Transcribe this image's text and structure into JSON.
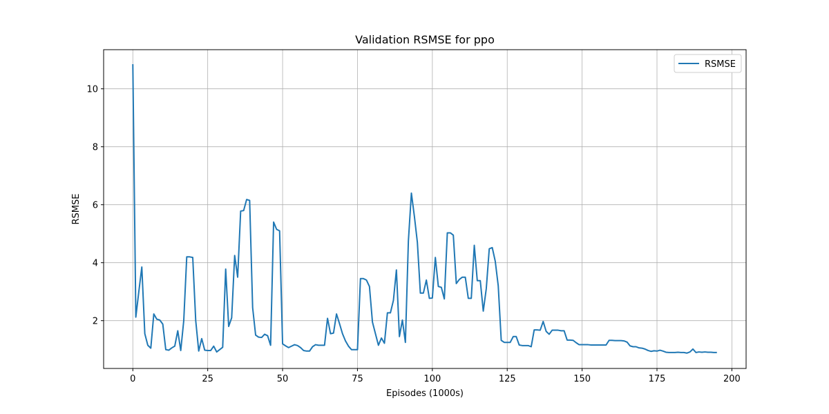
{
  "chart_data": {
    "type": "line",
    "title": "Validation RSMSE for ppo",
    "xlabel": "Episodes (1000s)",
    "ylabel": "RSMSE",
    "xlim": [
      -9.75,
      204.75
    ],
    "ylim": [
      0.35,
      11.35
    ],
    "xticks": [
      0,
      25,
      50,
      75,
      100,
      125,
      150,
      175,
      200
    ],
    "yticks": [
      2,
      4,
      6,
      8,
      10
    ],
    "grid": true,
    "legend_position": "upper right",
    "series": [
      {
        "name": "RSMSE",
        "color": "#1f77b4",
        "x": [
          0,
          1,
          2,
          3,
          4,
          5,
          6,
          7,
          8,
          9,
          10,
          11,
          12,
          13,
          14,
          15,
          16,
          17,
          18,
          19,
          20,
          21,
          22,
          23,
          24,
          25,
          26,
          27,
          28,
          29,
          30,
          31,
          32,
          33,
          34,
          35,
          36,
          37,
          38,
          39,
          40,
          41,
          42,
          43,
          44,
          45,
          46,
          47,
          48,
          49,
          50,
          51,
          52,
          53,
          54,
          55,
          56,
          57,
          58,
          59,
          60,
          61,
          62,
          63,
          64,
          65,
          66,
          67,
          68,
          69,
          70,
          71,
          72,
          73,
          74,
          75,
          76,
          77,
          78,
          79,
          80,
          81,
          82,
          83,
          84,
          85,
          86,
          87,
          88,
          89,
          90,
          91,
          92,
          93,
          94,
          95,
          96,
          97,
          98,
          99,
          100,
          101,
          102,
          103,
          104,
          105,
          106,
          107,
          108,
          109,
          110,
          111,
          112,
          113,
          114,
          115,
          116,
          117,
          118,
          119,
          120,
          121,
          122,
          123,
          124,
          125,
          126,
          127,
          128,
          129,
          130,
          131,
          132,
          133,
          134,
          135,
          136,
          137,
          138,
          139,
          140,
          141,
          142,
          143,
          144,
          145,
          146,
          147,
          148,
          149,
          150,
          151,
          152,
          153,
          154,
          155,
          156,
          157,
          158,
          159,
          160,
          161,
          162,
          163,
          164,
          165,
          166,
          167,
          168,
          169,
          170,
          171,
          172,
          173,
          174,
          175,
          176,
          177,
          178,
          179,
          180,
          181,
          182,
          183,
          184,
          185,
          186,
          187,
          188,
          189,
          190,
          191,
          192,
          193,
          194,
          195
        ],
        "values": [
          10.85,
          2.12,
          3.0,
          3.85,
          1.55,
          1.15,
          1.05,
          2.23,
          2.05,
          2.02,
          1.88,
          1.0,
          0.98,
          1.06,
          1.12,
          1.65,
          0.97,
          2.0,
          4.2,
          4.2,
          4.18,
          2.0,
          0.95,
          1.38,
          0.98,
          0.97,
          0.97,
          1.12,
          0.92,
          1.0,
          1.08,
          3.78,
          1.8,
          2.1,
          4.25,
          3.5,
          5.78,
          5.8,
          6.18,
          6.15,
          2.45,
          1.5,
          1.43,
          1.42,
          1.53,
          1.48,
          1.15,
          5.4,
          5.15,
          5.1,
          1.2,
          1.13,
          1.07,
          1.12,
          1.17,
          1.14,
          1.07,
          0.97,
          0.95,
          0.95,
          1.1,
          1.17,
          1.15,
          1.15,
          1.15,
          2.08,
          1.55,
          1.57,
          2.23,
          1.9,
          1.55,
          1.3,
          1.12,
          1.0,
          1.0,
          1.0,
          3.45,
          3.45,
          3.4,
          3.18,
          1.95,
          1.55,
          1.15,
          1.4,
          1.22,
          2.27,
          2.27,
          2.7,
          3.75,
          1.45,
          2.02,
          1.25,
          4.75,
          6.4,
          5.6,
          4.7,
          2.95,
          2.95,
          3.4,
          2.77,
          2.78,
          4.18,
          3.18,
          3.15,
          2.75,
          5.03,
          5.03,
          4.95,
          3.28,
          3.42,
          3.5,
          3.5,
          2.77,
          2.77,
          4.6,
          3.38,
          3.38,
          2.33,
          3.1,
          4.48,
          4.52,
          4.05,
          3.2,
          1.32,
          1.25,
          1.25,
          1.25,
          1.45,
          1.45,
          1.16,
          1.14,
          1.14,
          1.14,
          1.1,
          1.68,
          1.68,
          1.67,
          1.97,
          1.63,
          1.53,
          1.67,
          1.67,
          1.67,
          1.65,
          1.65,
          1.33,
          1.33,
          1.32,
          1.24,
          1.17,
          1.17,
          1.17,
          1.17,
          1.16,
          1.16,
          1.16,
          1.16,
          1.16,
          1.16,
          1.32,
          1.32,
          1.31,
          1.31,
          1.31,
          1.3,
          1.26,
          1.13,
          1.1,
          1.1,
          1.06,
          1.05,
          1.02,
          0.97,
          0.94,
          0.96,
          0.95,
          0.98,
          0.95,
          0.91,
          0.9,
          0.9,
          0.9,
          0.91,
          0.9,
          0.9,
          0.88,
          0.92,
          1.02,
          0.9,
          0.92,
          0.91,
          0.92,
          0.91,
          0.91,
          0.9,
          0.9
        ]
      }
    ]
  }
}
